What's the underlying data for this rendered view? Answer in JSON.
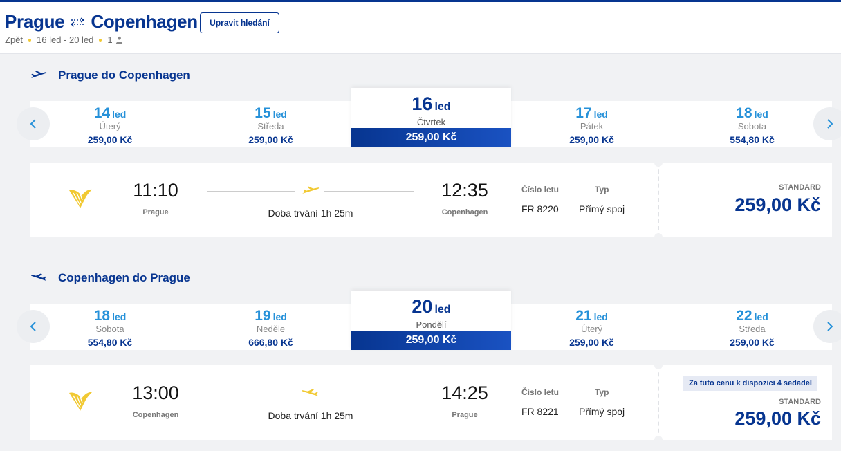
{
  "header": {
    "origin": "Prague",
    "destination": "Copenhagen",
    "edit_label": "Upravit hledání",
    "trip_type": "Zpět",
    "dates": "16 led - 20 led",
    "passengers": "1",
    "accent_color": "#073590"
  },
  "outbound": {
    "title": "Prague do Copenhagen",
    "dates": [
      {
        "day": "14",
        "month": "led",
        "weekday": "Úterý",
        "price": "259,00 Kč"
      },
      {
        "day": "15",
        "month": "led",
        "weekday": "Středa",
        "price": "259,00 Kč"
      },
      {
        "day": "16",
        "month": "led",
        "weekday": "Čtvrtek",
        "price": "259,00 Kč"
      },
      {
        "day": "17",
        "month": "led",
        "weekday": "Pátek",
        "price": "259,00 Kč"
      },
      {
        "day": "18",
        "month": "led",
        "weekday": "Sobota",
        "price": "554,80 Kč"
      }
    ],
    "selected_index": 2,
    "flight": {
      "depart_time": "11:10",
      "depart_city": "Prague",
      "duration": "Doba trvání 1h 25m",
      "arrive_time": "12:35",
      "arrive_city": "Copenhagen",
      "flight_no_label": "Číslo letu",
      "flight_no": "FR 8220",
      "type_label": "Typ",
      "type": "Přímý spoj",
      "fare": "STANDARD",
      "price": "259,00 Kč"
    }
  },
  "inbound": {
    "title": "Copenhagen do Prague",
    "dates": [
      {
        "day": "18",
        "month": "led",
        "weekday": "Sobota",
        "price": "554,80 Kč"
      },
      {
        "day": "19",
        "month": "led",
        "weekday": "Neděle",
        "price": "666,80 Kč"
      },
      {
        "day": "20",
        "month": "led",
        "weekday": "Pondělí",
        "price": "259,00 Kč"
      },
      {
        "day": "21",
        "month": "led",
        "weekday": "Úterý",
        "price": "259,00 Kč"
      },
      {
        "day": "22",
        "month": "led",
        "weekday": "Středa",
        "price": "259,00 Kč"
      }
    ],
    "selected_index": 2,
    "flight": {
      "depart_time": "13:00",
      "depart_city": "Copenhagen",
      "duration": "Doba trvání 1h 25m",
      "arrive_time": "14:25",
      "arrive_city": "Prague",
      "flight_no_label": "Číslo letu",
      "flight_no": "FR 8221",
      "type_label": "Typ",
      "type": "Přímý spoj",
      "seats_notice": "Za tuto cenu k dispozici 4 sedadel",
      "fare": "STANDARD",
      "price": "259,00 Kč"
    }
  }
}
